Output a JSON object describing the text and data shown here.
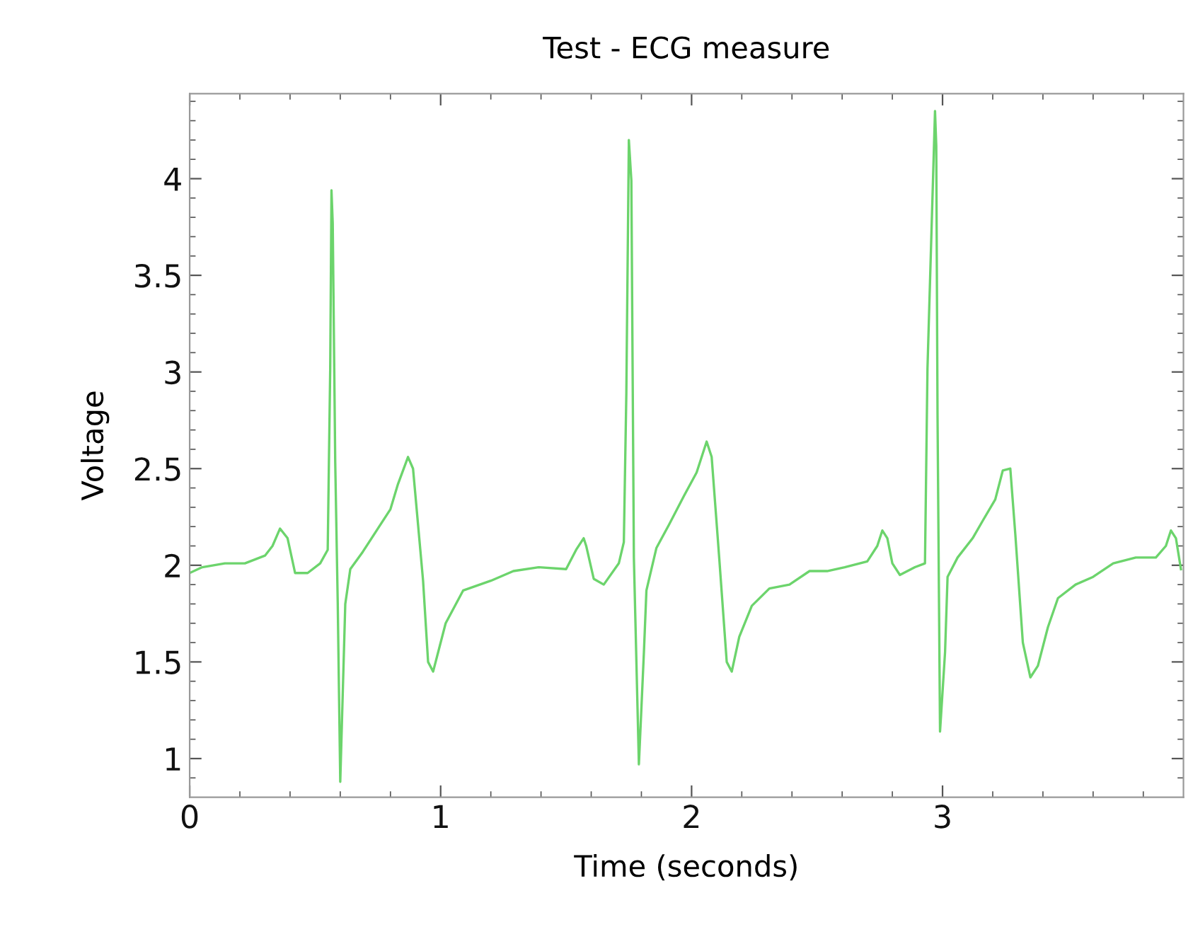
{
  "chart_data": {
    "type": "line",
    "title": "Test - ECG measure",
    "xlabel": "Time (seconds)",
    "ylabel": "Voltage",
    "xlim": [
      0,
      3.96
    ],
    "ylim": [
      0.8,
      4.44
    ],
    "xticks": [
      0,
      {
        "value": 0.2,
        "label": null
      },
      {
        "value": 0.4,
        "label": null
      },
      {
        "value": 0.6,
        "label": null
      },
      {
        "value": 0.8,
        "label": null
      },
      1,
      {
        "value": 1.2,
        "label": null
      },
      {
        "value": 1.4,
        "label": null
      },
      {
        "value": 1.6,
        "label": null
      },
      {
        "value": 1.8,
        "label": null
      },
      2,
      {
        "value": 2.2,
        "label": null
      },
      {
        "value": 2.4,
        "label": null
      },
      {
        "value": 2.6,
        "label": null
      },
      {
        "value": 2.8,
        "label": null
      },
      3,
      {
        "value": 3.2,
        "label": null
      },
      {
        "value": 3.4,
        "label": null
      },
      {
        "value": 3.6,
        "label": null
      },
      {
        "value": 3.8,
        "label": null
      }
    ],
    "yticks": [
      {
        "value": 0.9,
        "label": null
      },
      1,
      {
        "value": 1.1,
        "label": null
      },
      {
        "value": 1.2,
        "label": null
      },
      {
        "value": 1.3,
        "label": null
      },
      {
        "value": 1.4,
        "label": null
      },
      1.5,
      {
        "value": 1.6,
        "label": null
      },
      {
        "value": 1.7,
        "label": null
      },
      {
        "value": 1.8,
        "label": null
      },
      {
        "value": 1.9,
        "label": null
      },
      2,
      {
        "value": 2.1,
        "label": null
      },
      {
        "value": 2.2,
        "label": null
      },
      {
        "value": 2.3,
        "label": null
      },
      {
        "value": 2.4,
        "label": null
      },
      2.5,
      {
        "value": 2.6,
        "label": null
      },
      {
        "value": 2.7,
        "label": null
      },
      {
        "value": 2.8,
        "label": null
      },
      {
        "value": 2.9,
        "label": null
      },
      3,
      {
        "value": 3.1,
        "label": null
      },
      {
        "value": 3.2,
        "label": null
      },
      {
        "value": 3.3,
        "label": null
      },
      {
        "value": 3.4,
        "label": null
      },
      3.5,
      {
        "value": 3.6,
        "label": null
      },
      {
        "value": 3.7,
        "label": null
      },
      {
        "value": 3.8,
        "label": null
      },
      {
        "value": 3.9,
        "label": null
      },
      4,
      {
        "value": 4.1,
        "label": null
      },
      {
        "value": 4.2,
        "label": null
      },
      {
        "value": 4.3,
        "label": null
      },
      {
        "value": 4.4,
        "label": null
      }
    ],
    "grid": false,
    "legend": false,
    "marker": "none",
    "line_style": "solid",
    "series": [
      {
        "color": "#6cd46c",
        "x": [
          0,
          0.05,
          0.14,
          0.22,
          0.3,
          0.33,
          0.36,
          0.39,
          0.42,
          0.47,
          0.52,
          0.55,
          0.56,
          0.565,
          0.57,
          0.58,
          0.59,
          0.6,
          0.62,
          0.64,
          0.69,
          0.75,
          0.8,
          0.83,
          0.87,
          0.89,
          0.93,
          0.95,
          0.97,
          1.02,
          1.09,
          1.2,
          1.29,
          1.39,
          1.5,
          1.54,
          1.57,
          1.58,
          1.61,
          1.65,
          1.71,
          1.73,
          1.74,
          1.75,
          1.76,
          1.77,
          1.79,
          1.81,
          1.82,
          1.86,
          1.91,
          1.97,
          2.02,
          2.06,
          2.08,
          2.11,
          2.14,
          2.16,
          2.19,
          2.24,
          2.31,
          2.39,
          2.47,
          2.54,
          2.61,
          2.7,
          2.74,
          2.76,
          2.78,
          2.8,
          2.83,
          2.89,
          2.93,
          2.94,
          2.97,
          2.975,
          2.98,
          2.99,
          3.01,
          3.02,
          3.06,
          3.12,
          3.16,
          3.21,
          3.24,
          3.27,
          3.29,
          3.32,
          3.35,
          3.38,
          3.42,
          3.46,
          3.53,
          3.6,
          3.68,
          3.77,
          3.85,
          3.89,
          3.91,
          3.93,
          3.95
        ],
        "values": [
          1.96,
          1.99,
          2.01,
          2.01,
          2.05,
          2.1,
          2.19,
          2.14,
          1.96,
          1.96,
          2.01,
          2.08,
          3.02,
          3.94,
          3.77,
          2.53,
          1.8,
          0.88,
          1.8,
          1.98,
          2.07,
          2.19,
          2.29,
          2.42,
          2.56,
          2.5,
          1.92,
          1.5,
          1.45,
          1.7,
          1.87,
          1.92,
          1.97,
          1.99,
          1.98,
          2.08,
          2.14,
          2.1,
          1.93,
          1.9,
          2.01,
          2.12,
          2.89,
          4.2,
          3.99,
          2.04,
          0.97,
          1.55,
          1.87,
          2.09,
          2.21,
          2.36,
          2.48,
          2.64,
          2.56,
          2.04,
          1.5,
          1.45,
          1.63,
          1.79,
          1.88,
          1.9,
          1.97,
          1.97,
          1.99,
          2.02,
          2.1,
          2.18,
          2.14,
          2.01,
          1.95,
          1.99,
          2.01,
          3.02,
          4.35,
          4.17,
          2.78,
          1.14,
          1.55,
          1.94,
          2.04,
          2.14,
          2.23,
          2.34,
          2.49,
          2.5,
          2.16,
          1.6,
          1.42,
          1.48,
          1.68,
          1.83,
          1.9,
          1.94,
          2.01,
          2.04,
          2.04,
          2.1,
          2.18,
          2.14,
          1.98
        ]
      }
    ]
  }
}
